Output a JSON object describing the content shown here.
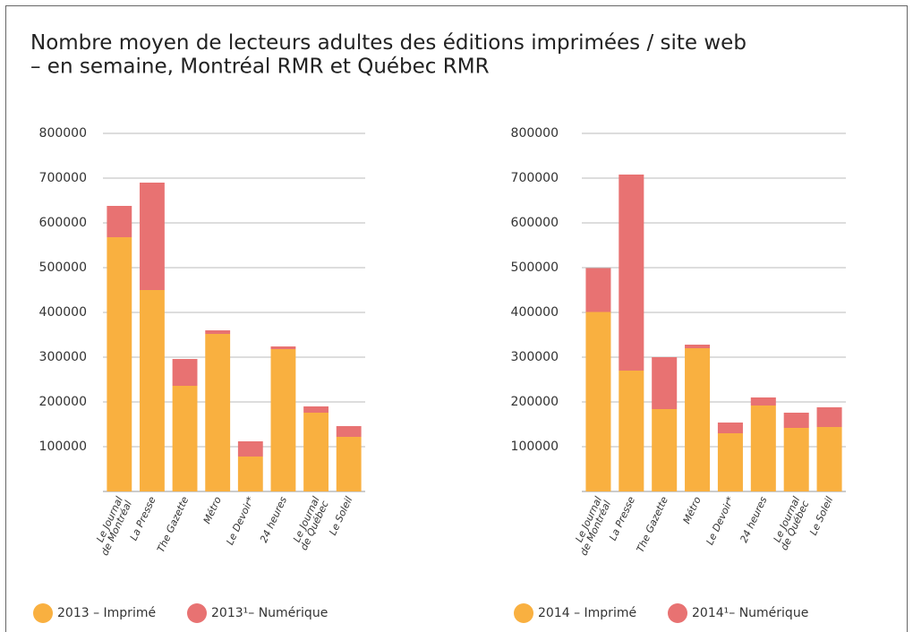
{
  "title": "Nombre moyen de lecteurs adultes des éditions imprimées / site web\n– en semaine, Montréal RMR et Québec RMR",
  "chart_data": [
    {
      "type": "bar",
      "stacked": true,
      "categories": [
        "Le Journal\nde Montréal",
        "La Presse",
        "The Gazette",
        "Métro",
        "Le Devoir*",
        "24 heures",
        "Le Journal\nde Québec",
        "Le Soleil"
      ],
      "series": [
        {
          "name": "2013 – Imprimé",
          "color": "#f9b040",
          "values": [
            568000,
            450000,
            236000,
            352000,
            78000,
            318000,
            176000,
            122000
          ]
        },
        {
          "name": "2013¹– Numérique",
          "color": "#e87272",
          "values": [
            70000,
            240000,
            60000,
            8000,
            34000,
            6000,
            14000,
            24000
          ]
        }
      ],
      "ylim": [
        0,
        800000
      ],
      "yticks": [
        100000,
        200000,
        300000,
        400000,
        500000,
        600000,
        700000,
        800000
      ],
      "grid": true
    },
    {
      "type": "bar",
      "stacked": true,
      "categories": [
        "Le Journal\nde Montréal",
        "La Presse",
        "The Gazette",
        "Métro",
        "Le Devoir*",
        "24 heures",
        "Le Journal\nde Québec",
        "Le Soleil"
      ],
      "series": [
        {
          "name": "2014 – Imprimé",
          "color": "#f9b040",
          "values": [
            401000,
            270000,
            184000,
            320000,
            130000,
            192000,
            142000,
            144000
          ]
        },
        {
          "name": "2014¹– Numérique",
          "color": "#e87272",
          "values": [
            98000,
            438000,
            116000,
            8000,
            24000,
            18000,
            34000,
            44000
          ]
        }
      ],
      "ylim": [
        0,
        800000
      ],
      "yticks": [
        100000,
        200000,
        300000,
        400000,
        500000,
        600000,
        700000,
        800000
      ],
      "grid": true
    }
  ]
}
